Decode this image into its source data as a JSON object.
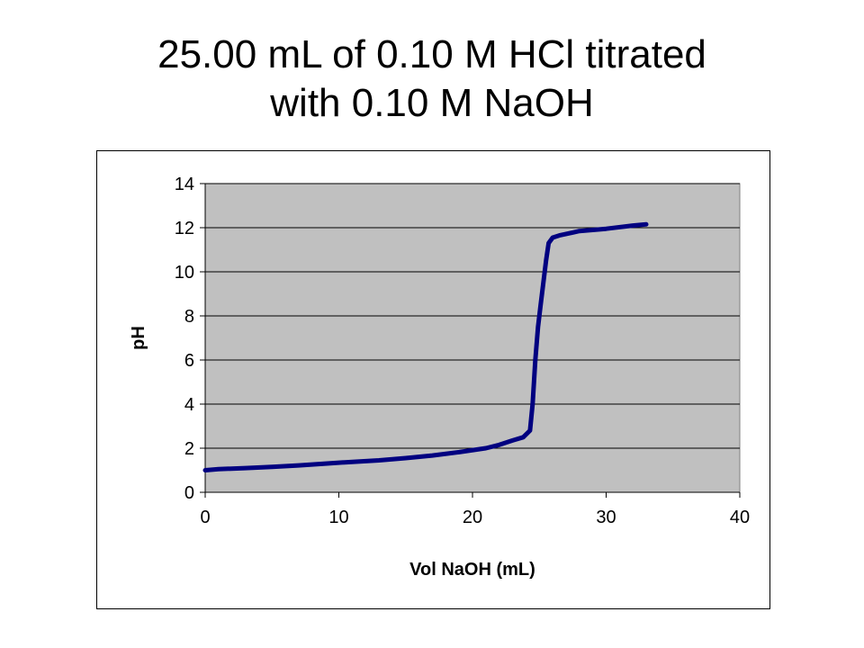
{
  "slide": {
    "title_line1": "25.00 mL of 0.10 M HCl titrated",
    "title_line2": "with 0.10 M NaOH"
  },
  "colors": {
    "plot_area": "#c0c0c0",
    "line": "#000080",
    "gridline": "#000000"
  },
  "chart_data": {
    "type": "line",
    "title": "",
    "xlabel": "Vol NaOH (mL)",
    "ylabel": "pH",
    "xlim": [
      0,
      40
    ],
    "ylim": [
      0,
      14
    ],
    "x_ticks": [
      0,
      10,
      20,
      30,
      40
    ],
    "x_tick_labels": [
      "0",
      "10",
      "20",
      "30",
      "40"
    ],
    "y_ticks": [
      0,
      2,
      4,
      6,
      8,
      10,
      12,
      14
    ],
    "y_tick_labels": [
      "0",
      "2",
      "4",
      "6",
      "8",
      "10",
      "12",
      "14"
    ],
    "grid": "horizontal",
    "legend": "none",
    "series": [
      {
        "x": [
          0,
          1,
          3,
          5,
          7,
          9,
          11,
          13,
          15,
          17,
          19,
          21,
          22,
          23,
          23.8,
          24.3,
          24.5,
          24.7,
          24.9,
          25.1,
          25.3,
          25.5,
          25.7,
          26,
          26.5,
          28,
          30,
          32,
          33
        ],
        "y": [
          1.0,
          1.05,
          1.1,
          1.15,
          1.22,
          1.3,
          1.38,
          1.45,
          1.55,
          1.67,
          1.82,
          2.0,
          2.15,
          2.35,
          2.5,
          2.8,
          4.0,
          6.0,
          7.5,
          8.5,
          9.5,
          10.5,
          11.3,
          11.55,
          11.65,
          11.85,
          11.95,
          12.1,
          12.15
        ]
      }
    ]
  }
}
